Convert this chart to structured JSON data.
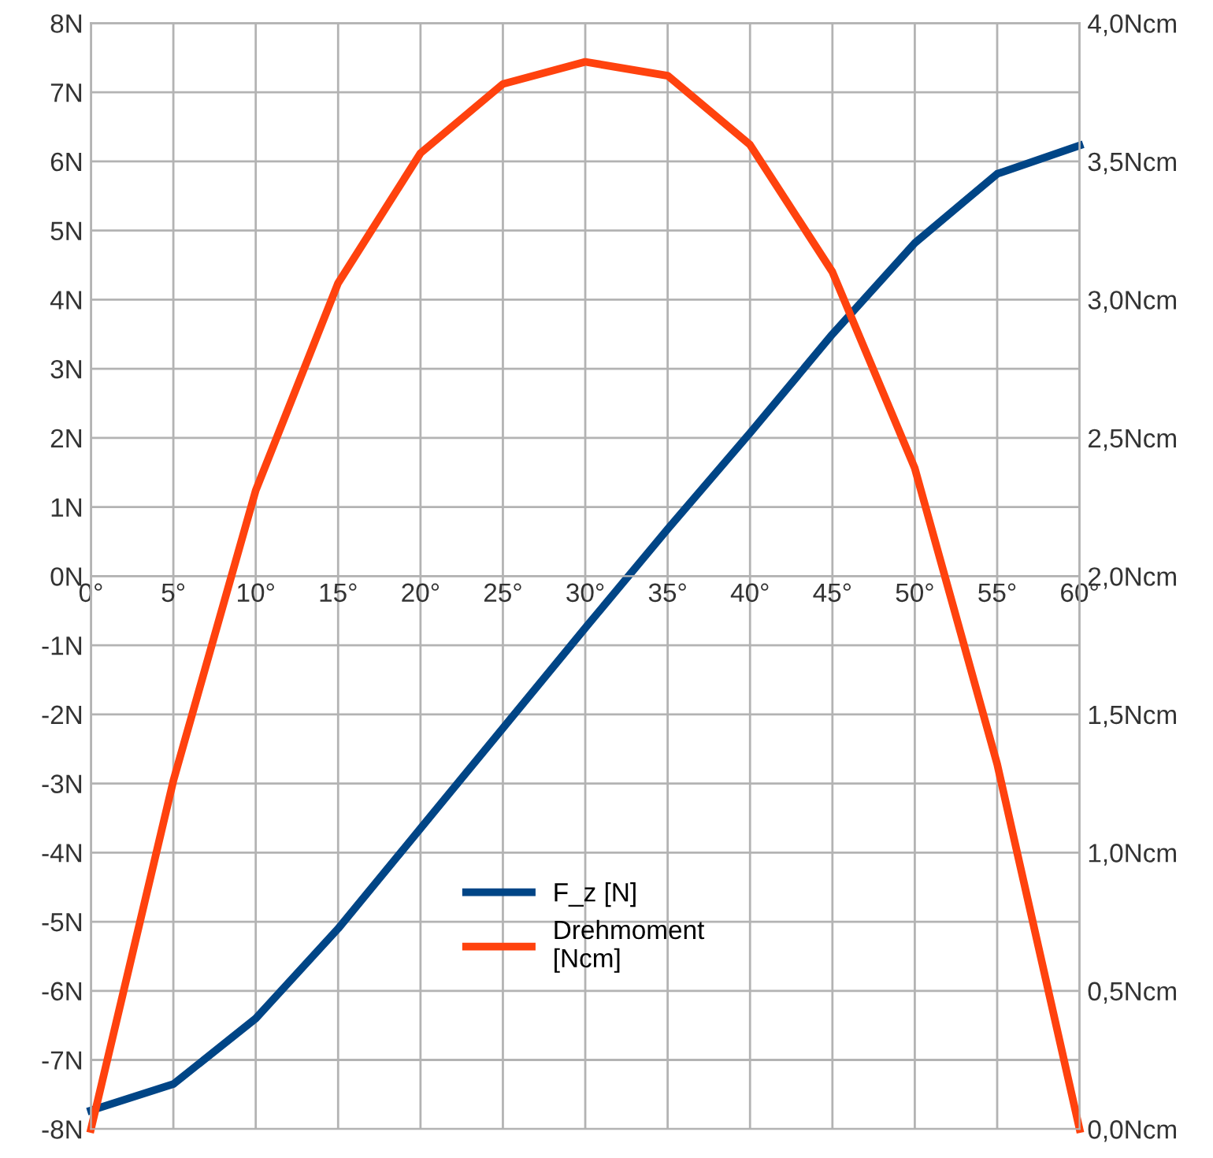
{
  "chart_data": {
    "type": "line",
    "x": [
      0,
      5,
      10,
      15,
      20,
      25,
      30,
      35,
      40,
      45,
      50,
      55,
      60
    ],
    "series": [
      {
        "name": "F_z [N]",
        "color": "#004586",
        "values": [
          -7.73,
          -7.35,
          -6.4,
          -5.1,
          -3.65,
          -2.2,
          -0.75,
          0.68,
          2.07,
          3.5,
          4.82,
          5.82,
          6.23
        ]
      },
      {
        "name": "Drehmoment\n[Ncm]",
        "color": "#ff420e",
        "axis": "y2",
        "values": [
          0.0,
          1.26,
          2.31,
          3.06,
          3.53,
          3.78,
          3.86,
          3.81,
          3.56,
          3.1,
          2.39,
          1.32,
          0.0
        ]
      }
    ],
    "xlim": [
      0,
      60
    ],
    "xticks": [
      {
        "value": 0,
        "label": "0°"
      },
      {
        "value": 5,
        "label": "5°"
      },
      {
        "value": 10,
        "label": "10°"
      },
      {
        "value": 15,
        "label": "15°"
      },
      {
        "value": 20,
        "label": "20°"
      },
      {
        "value": 25,
        "label": "25°"
      },
      {
        "value": 30,
        "label": "30°"
      },
      {
        "value": 35,
        "label": "35°"
      },
      {
        "value": 40,
        "label": "40°"
      },
      {
        "value": 45,
        "label": "45°"
      },
      {
        "value": 50,
        "label": "50°"
      },
      {
        "value": 55,
        "label": "55°"
      },
      {
        "value": 60,
        "label": "60°"
      }
    ],
    "ylim": [
      -8,
      8
    ],
    "yticks": [
      {
        "value": -8,
        "label": "-8N"
      },
      {
        "value": -7,
        "label": "-7N"
      },
      {
        "value": -6,
        "label": "-6N"
      },
      {
        "value": -5,
        "label": "-5N"
      },
      {
        "value": -4,
        "label": "-4N"
      },
      {
        "value": -3,
        "label": "-3N"
      },
      {
        "value": -2,
        "label": "-2N"
      },
      {
        "value": -1,
        "label": "-1N"
      },
      {
        "value": 0,
        "label": "0N"
      },
      {
        "value": 1,
        "label": "1N"
      },
      {
        "value": 2,
        "label": "2N"
      },
      {
        "value": 3,
        "label": "3N"
      },
      {
        "value": 4,
        "label": "4N"
      },
      {
        "value": 5,
        "label": "5N"
      },
      {
        "value": 6,
        "label": "6N"
      },
      {
        "value": 7,
        "label": "7N"
      },
      {
        "value": 8,
        "label": "8N"
      }
    ],
    "y2lim": [
      0,
      4
    ],
    "y2ticks": [
      {
        "value": 0,
        "label": "0,0Ncm"
      },
      {
        "value": 0.5,
        "label": "0,5Ncm"
      },
      {
        "value": 1,
        "label": "1,0Ncm"
      },
      {
        "value": 1.5,
        "label": "1,5Ncm"
      },
      {
        "value": 2,
        "label": "2,0Ncm"
      },
      {
        "value": 2.5,
        "label": "2,5Ncm"
      },
      {
        "value": 3,
        "label": "3,0Ncm"
      },
      {
        "value": 3.5,
        "label": "3,5Ncm"
      },
      {
        "value": 4,
        "label": "4,0Ncm"
      }
    ],
    "grid": true,
    "legend": "bottom",
    "marker": "none",
    "line_style": "solid"
  }
}
